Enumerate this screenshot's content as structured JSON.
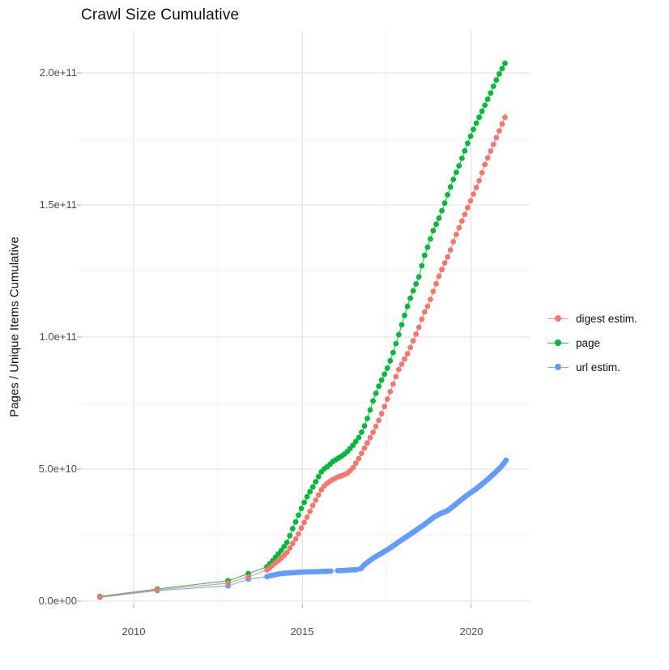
{
  "title": "Crawl Size Cumulative",
  "y_axis": {
    "label": "Pages / Unique Items Cumulative",
    "ticks": [
      "0.0e+00",
      "5.0e+10",
      "1.0e+11",
      "1.5e+11",
      "2.0e+11"
    ],
    "tick_values_e9": [
      0,
      50,
      100,
      150,
      200
    ]
  },
  "x_axis": {
    "ticks": [
      "2010",
      "2015",
      "2020"
    ],
    "tick_values": [
      2010,
      2015,
      2020
    ]
  },
  "legend": {
    "items": [
      {
        "label": "digest estim.",
        "color": "#F8766D"
      },
      {
        "label": "page",
        "color": "#00BA38"
      },
      {
        "label": "url estim.",
        "color": "#619CFF"
      }
    ]
  },
  "colors": {
    "background": "#ffffff",
    "grid_major": "#e5e5e5",
    "grid_minor": "#f2f2f2",
    "tick_mark": "#bbbbbb",
    "tick_text": "#4d4d4d",
    "digest": "#F8766D",
    "page": "#00BA38",
    "url": "#619CFF"
  },
  "chart_data": {
    "type": "scatter",
    "subtype": "points-with-line",
    "title": "Crawl Size Cumulative",
    "xlabel": "",
    "ylabel": "Pages / Unique Items Cumulative",
    "x_unit": "year",
    "y_unit": "billions of pages / unique items (1e9)",
    "xlim": [
      2008.4,
      2021.8
    ],
    "ylim_e9": [
      0,
      210
    ],
    "grid": "major and minor, light gray on white, no panel border",
    "legend_position": "right-center",
    "x_major_breaks": [
      2010,
      2015,
      2020
    ],
    "x_minor_breaks": [
      2012.5,
      2017.5
    ],
    "y_major_breaks_e9": [
      0,
      50,
      100,
      150,
      200
    ],
    "y_minor_breaks_e9": [
      25,
      75,
      125,
      175
    ],
    "series": [
      {
        "name": "digest estim.",
        "color": "#F8766D",
        "points_year_billions": [
          [
            2009.0,
            1.6
          ],
          [
            2010.7,
            4.3
          ],
          [
            2012.8,
            6.8
          ],
          [
            2013.4,
            9.2
          ],
          [
            2013.95,
            11.8
          ],
          [
            2014.1,
            13.3
          ],
          [
            2014.25,
            15.0
          ],
          [
            2014.4,
            16.5
          ],
          [
            2014.55,
            18.5
          ],
          [
            2014.7,
            21.5
          ],
          [
            2014.85,
            24.5
          ],
          [
            2015.0,
            28.5
          ],
          [
            2015.15,
            32.0
          ],
          [
            2015.3,
            36.0
          ],
          [
            2015.45,
            39.5
          ],
          [
            2015.6,
            43.0
          ],
          [
            2015.75,
            44.8
          ],
          [
            2015.9,
            46.0
          ],
          [
            2016.05,
            47.0
          ],
          [
            2016.2,
            47.6
          ],
          [
            2016.35,
            48.5
          ],
          [
            2016.5,
            50.5
          ],
          [
            2016.65,
            53.5
          ],
          [
            2016.8,
            57.0
          ],
          [
            2016.95,
            60.5
          ],
          [
            2017.1,
            64.0
          ],
          [
            2017.25,
            68.0
          ],
          [
            2017.4,
            72.5
          ],
          [
            2017.55,
            77.5
          ],
          [
            2017.7,
            82.5
          ],
          [
            2017.85,
            87.5
          ],
          [
            2018.0,
            91.0
          ],
          [
            2018.15,
            94.5
          ],
          [
            2018.3,
            99.0
          ],
          [
            2018.45,
            103.5
          ],
          [
            2018.6,
            108.9
          ],
          [
            2018.75,
            112.6
          ],
          [
            2018.9,
            118.0
          ],
          [
            2019.05,
            123.0
          ],
          [
            2019.2,
            127.5
          ],
          [
            2019.35,
            131.5
          ],
          [
            2019.5,
            137.0
          ],
          [
            2019.65,
            141.5
          ],
          [
            2019.8,
            146.0
          ],
          [
            2019.95,
            150.5
          ],
          [
            2020.1,
            155.0
          ],
          [
            2020.25,
            159.5
          ],
          [
            2020.4,
            165.0
          ],
          [
            2020.55,
            169.5
          ],
          [
            2020.7,
            174.0
          ],
          [
            2020.85,
            178.5
          ],
          [
            2021.0,
            183.0
          ],
          [
            2021.05,
            184.7
          ]
        ],
        "sparse_until": 2013.9,
        "dot_intervals": [
          {
            "from": 2013.95,
            "to": 2021.05,
            "step": 0.085
          }
        ]
      },
      {
        "name": "page",
        "color": "#00BA38",
        "points_year_billions": [
          [
            2009.0,
            1.8
          ],
          [
            2010.7,
            4.6
          ],
          [
            2012.8,
            7.7
          ],
          [
            2013.4,
            10.4
          ],
          [
            2013.95,
            13.0
          ],
          [
            2014.1,
            15.0
          ],
          [
            2014.25,
            17.3
          ],
          [
            2014.4,
            19.6
          ],
          [
            2014.55,
            22.3
          ],
          [
            2014.7,
            27.0
          ],
          [
            2014.85,
            31.5
          ],
          [
            2015.0,
            36.0
          ],
          [
            2015.15,
            39.8
          ],
          [
            2015.3,
            43.0
          ],
          [
            2015.45,
            46.5
          ],
          [
            2015.6,
            49.7
          ],
          [
            2015.75,
            51.0
          ],
          [
            2015.9,
            52.8
          ],
          [
            2016.05,
            54.0
          ],
          [
            2016.2,
            55.2
          ],
          [
            2016.35,
            56.8
          ],
          [
            2016.5,
            59.0
          ],
          [
            2016.65,
            61.5
          ],
          [
            2016.8,
            65.0
          ],
          [
            2016.95,
            70.0
          ],
          [
            2017.1,
            76.0
          ],
          [
            2017.25,
            81.0
          ],
          [
            2017.4,
            85.0
          ],
          [
            2017.55,
            89.0
          ],
          [
            2017.7,
            94.5
          ],
          [
            2017.85,
            100.5
          ],
          [
            2018.0,
            107.0
          ],
          [
            2018.15,
            113.0
          ],
          [
            2018.3,
            118.0
          ],
          [
            2018.45,
            122.5
          ],
          [
            2018.6,
            130.0
          ],
          [
            2018.75,
            135.5
          ],
          [
            2018.9,
            141.0
          ],
          [
            2019.05,
            145.0
          ],
          [
            2019.2,
            150.0
          ],
          [
            2019.35,
            155.5
          ],
          [
            2019.5,
            160.5
          ],
          [
            2019.65,
            165.0
          ],
          [
            2019.8,
            170.0
          ],
          [
            2019.95,
            175.0
          ],
          [
            2020.1,
            179.5
          ],
          [
            2020.25,
            183.5
          ],
          [
            2020.4,
            187.5
          ],
          [
            2020.55,
            191.5
          ],
          [
            2020.7,
            196.0
          ],
          [
            2020.85,
            200.0
          ],
          [
            2021.0,
            203.5
          ],
          [
            2021.05,
            204.7
          ]
        ],
        "sparse_until": 2013.9,
        "dot_intervals": [
          {
            "from": 2013.95,
            "to": 2021.05,
            "step": 0.085
          }
        ]
      },
      {
        "name": "url estim.",
        "color": "#619CFF",
        "points_year_billions": [
          [
            2009.0,
            1.4
          ],
          [
            2010.7,
            4.0
          ],
          [
            2012.8,
            5.8
          ],
          [
            2013.4,
            8.3
          ],
          [
            2013.95,
            9.3
          ],
          [
            2014.1,
            9.8
          ],
          [
            2014.3,
            10.3
          ],
          [
            2014.5,
            10.6
          ],
          [
            2014.75,
            10.8
          ],
          [
            2015.0,
            11.0
          ],
          [
            2015.25,
            11.1
          ],
          [
            2015.5,
            11.2
          ],
          [
            2015.75,
            11.3
          ],
          [
            2016.0,
            11.5
          ],
          [
            2016.2,
            11.6
          ],
          [
            2016.45,
            11.8
          ],
          [
            2016.65,
            12.0
          ],
          [
            2016.75,
            12.4
          ],
          [
            2016.82,
            13.6
          ],
          [
            2016.95,
            14.9
          ],
          [
            2017.1,
            16.3
          ],
          [
            2017.3,
            17.8
          ],
          [
            2017.5,
            19.3
          ],
          [
            2017.7,
            21.0
          ],
          [
            2017.9,
            22.8
          ],
          [
            2018.1,
            24.5
          ],
          [
            2018.3,
            26.2
          ],
          [
            2018.5,
            28.0
          ],
          [
            2018.7,
            29.8
          ],
          [
            2018.9,
            31.8
          ],
          [
            2019.1,
            33.2
          ],
          [
            2019.3,
            34.2
          ],
          [
            2019.5,
            36.2
          ],
          [
            2019.7,
            38.3
          ],
          [
            2019.9,
            40.3
          ],
          [
            2020.1,
            42.0
          ],
          [
            2020.3,
            44.0
          ],
          [
            2020.5,
            46.2
          ],
          [
            2020.7,
            48.5
          ],
          [
            2020.9,
            51.0
          ],
          [
            2021.05,
            53.5
          ]
        ],
        "sparse_until": 2013.9,
        "dot_intervals": [
          {
            "from": 2013.95,
            "to": 2015.85,
            "step": 0.07
          },
          {
            "from": 2016.05,
            "to": 2016.68,
            "step": 0.08
          },
          {
            "from": 2016.72,
            "to": 2021.05,
            "step": 0.04
          }
        ]
      }
    ]
  }
}
